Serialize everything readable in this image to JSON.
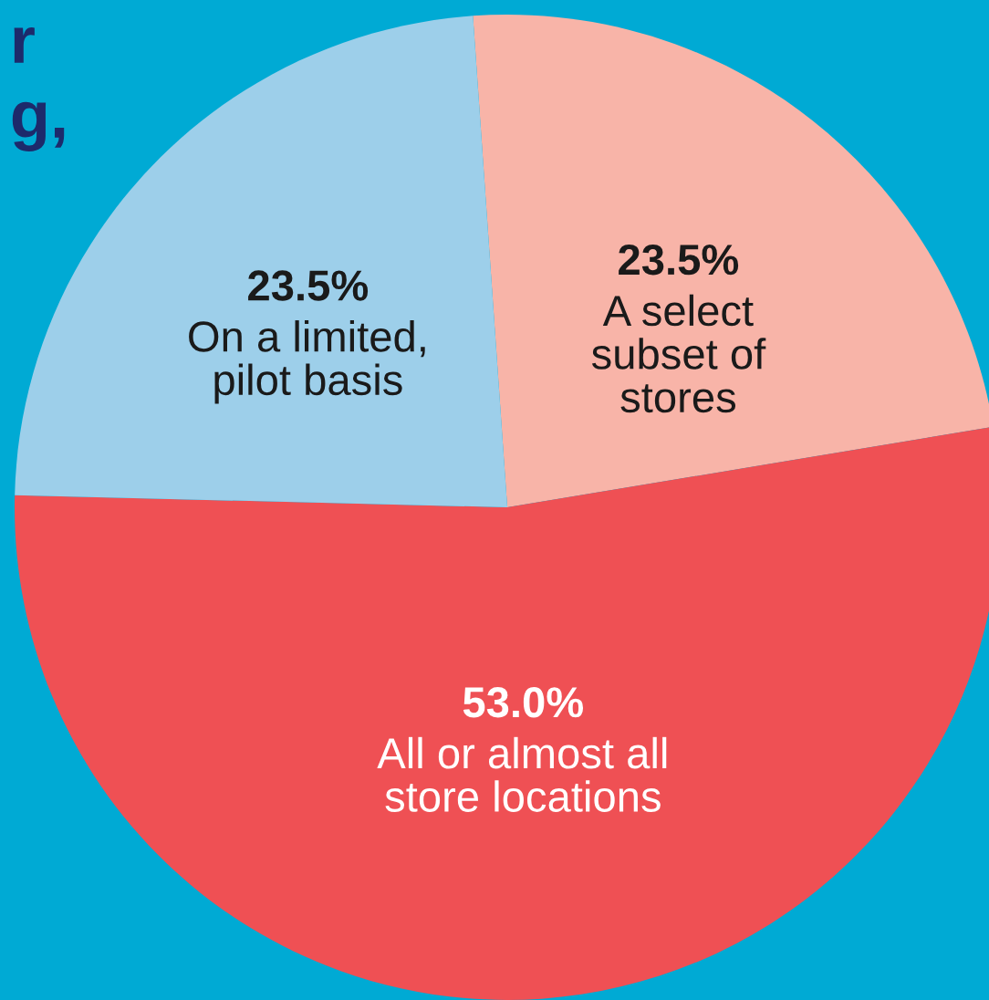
{
  "chart_data": {
    "type": "pie",
    "categories": [
      "A select\nsubset of\nstores",
      "All or almost all\nstore locations",
      "On a limited,\npilot basis"
    ],
    "values": [
      23.5,
      53.0,
      23.5
    ],
    "value_labels": [
      "23.5%",
      "53.0%",
      "23.5%"
    ],
    "colors": [
      "#f8b4a8",
      "#ef5054",
      "#9dcfea"
    ],
    "annotations": [
      "r",
      "g,"
    ],
    "legend": false
  }
}
